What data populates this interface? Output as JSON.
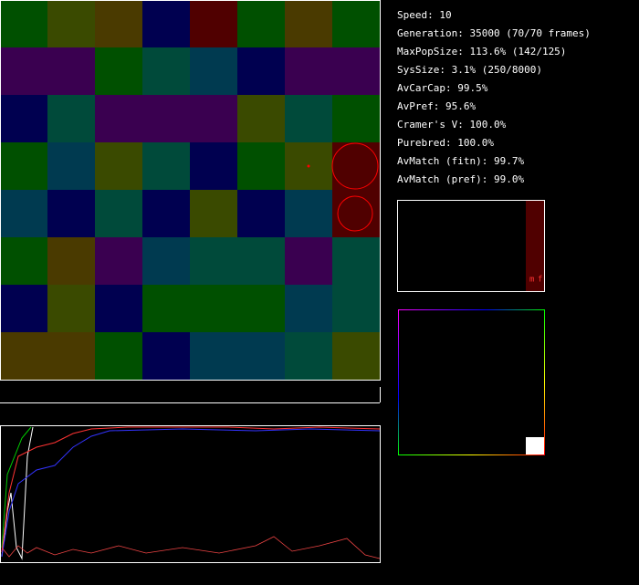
{
  "stats": [
    "Speed: 10",
    "Generation: 35000 (70/70 frames)",
    "MaxPopSize: 113.6% (142/125)",
    "SysSize: 3.1% (250/8000)",
    "AvCarCap: 99.5%",
    "AvPref: 95.6%",
    "Cramer's V: 100.0%",
    "Purebred: 100.0%",
    "AvMatch (fitn): 99.7%",
    "AvMatch (pref): 99.0%"
  ],
  "sex_labels": [
    "m",
    "f"
  ]
}
